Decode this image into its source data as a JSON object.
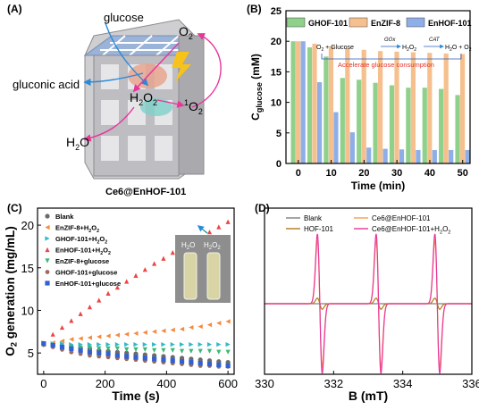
{
  "panels": {
    "a": {
      "label": "(A)",
      "caption": "Ce6@EnHOF-101",
      "labels": {
        "glucose": "glucose",
        "o2": "O",
        "o2_sub": "2",
        "gluconic": "gluconic acid",
        "h2o2_a": "H",
        "h2o2_b": "2",
        "h2o2_c": "O",
        "h2o2_d": "2",
        "singlet_sup": "1",
        "singlet_o": "O",
        "singlet_sub": "2",
        "h2o_a": "H",
        "h2o_b": "2",
        "h2o_c": "O"
      }
    },
    "b": {
      "label": "(B)"
    },
    "c": {
      "label": "(C)"
    },
    "d": {
      "label": "(D)"
    }
  },
  "chart_data": [
    {
      "id": "B",
      "type": "bar",
      "categories": [
        "0",
        "5",
        "10",
        "15",
        "20",
        "25",
        "30",
        "35",
        "40",
        "45",
        "50"
      ],
      "series": [
        {
          "name": "GHOF-101",
          "color": "#8fd08a",
          "values": [
            20.0,
            19.0,
            17.5,
            14.0,
            13.7,
            13.2,
            12.8,
            12.4,
            12.4,
            12.2,
            11.2
          ]
        },
        {
          "name": "EnZIF-8",
          "color": "#f6c08e",
          "values": [
            20.0,
            19.6,
            19.2,
            18.8,
            18.6,
            18.4,
            18.3,
            18.2,
            18.1,
            18.0,
            17.9
          ]
        },
        {
          "name": "EnHOF-101",
          "color": "#8eaee8",
          "values": [
            20.0,
            13.3,
            8.4,
            5.1,
            2.6,
            2.4,
            2.3,
            2.2,
            2.2,
            2.2,
            2.2
          ]
        }
      ],
      "xlabel": "Time (min)",
      "ylabel_main": "C",
      "ylabel_sub": "glucose",
      "ylabel_unit": " (mM)",
      "ylim": [
        0,
        25
      ],
      "yticks": [
        "0",
        "5",
        "10",
        "15",
        "20",
        "25"
      ],
      "xticks": [
        "0",
        "10",
        "20",
        "30",
        "40",
        "50"
      ],
      "legend": "top",
      "inset": {
        "reaction_parts": [
          "O",
          "2",
          " + Glucose",
          "GOx",
          "H",
          "2",
          "O",
          "2",
          "CAT",
          "H",
          "2",
          "O + O",
          "2"
        ],
        "note": "Accelerate glucose consumption",
        "note_color": "#e8332a"
      }
    },
    {
      "id": "C",
      "type": "scatter",
      "x": [
        0,
        30,
        60,
        90,
        120,
        150,
        180,
        210,
        240,
        270,
        300,
        330,
        360,
        390,
        420,
        450,
        480,
        510,
        540,
        570,
        600
      ],
      "series": [
        {
          "name": "Blank",
          "marker": "circle",
          "color": "#6b6b6b",
          "values": [
            6.0,
            5.9,
            5.8,
            5.7,
            5.6,
            5.5,
            5.3,
            5.2,
            5.1,
            5.0,
            4.9,
            4.8,
            4.7,
            4.6,
            4.5,
            4.4,
            4.3,
            4.2,
            4.1,
            4.0,
            3.9
          ]
        },
        {
          "name": "EnZIF-8+H2O2",
          "marker": "triangle-left",
          "color": "#f58a3c",
          "values": [
            6.0,
            6.2,
            6.4,
            6.6,
            6.7,
            6.8,
            6.9,
            7.0,
            7.1,
            7.2,
            7.3,
            7.4,
            7.5,
            7.6,
            7.7,
            7.8,
            8.0,
            8.1,
            8.3,
            8.5,
            8.7
          ]
        },
        {
          "name": "GHOF-101+H2O2",
          "marker": "triangle-right",
          "color": "#31b8c8",
          "values": [
            6.2,
            6.1,
            6.1,
            6.0,
            6.0,
            6.0,
            6.0,
            6.0,
            6.0,
            6.0,
            6.0,
            6.0,
            6.0,
            6.0,
            6.0,
            6.0,
            6.0,
            6.0,
            6.0,
            6.0,
            6.0
          ]
        },
        {
          "name": "EnHOF-101+H2O2",
          "marker": "triangle-up",
          "color": "#ec4545",
          "values": [
            6.2,
            7.2,
            8.0,
            8.8,
            9.6,
            10.4,
            11.2,
            12.0,
            12.7,
            13.4,
            14.1,
            14.8,
            15.5,
            16.1,
            16.8,
            17.4,
            18.0,
            18.6,
            19.2,
            19.8,
            20.4
          ]
        },
        {
          "name": "EnZIF-8+glucose",
          "marker": "triangle-down",
          "color": "#3cb878",
          "values": [
            5.9,
            5.8,
            5.7,
            5.7,
            5.6,
            5.6,
            5.5,
            5.5,
            5.5,
            5.4,
            5.4,
            5.4,
            5.3,
            5.3,
            5.3,
            5.2,
            5.2,
            5.2,
            5.2,
            5.1,
            5.1
          ]
        },
        {
          "name": "GHOF-101+glucose",
          "marker": "hexagon",
          "color": "#9a6a5a",
          "values": [
            6.0,
            5.7,
            5.4,
            5.1,
            4.9,
            4.7,
            4.6,
            4.5,
            4.4,
            4.3,
            4.2,
            4.1,
            4.0,
            3.9,
            3.8,
            3.7,
            3.6,
            3.5,
            3.5,
            3.4,
            3.4
          ]
        },
        {
          "name": "EnHOF-101+glucose",
          "marker": "square",
          "color": "#3360d0",
          "values": [
            6.1,
            5.9,
            5.7,
            5.5,
            5.3,
            5.1,
            5.0,
            4.9,
            4.7,
            4.6,
            4.5,
            4.4,
            4.3,
            4.2,
            4.1,
            4.0,
            3.9,
            3.8,
            3.7,
            3.6,
            3.5
          ]
        }
      ],
      "legend_labels": [
        [
          "Blank"
        ],
        [
          "EnZIF-8+H",
          "2",
          "O",
          "2"
        ],
        [
          "GHOF-101+H",
          "2",
          "O",
          "2"
        ],
        [
          "EnHOF-101+H",
          "2",
          "O",
          "2"
        ],
        [
          "EnZIF-8+glucose"
        ],
        [
          "GHOF-101+glucose"
        ],
        [
          "EnHOF-101+glucose"
        ]
      ],
      "xlabel": "Time (s)",
      "ylabel_parts": [
        "O",
        "2",
        " generation (mg/mL)"
      ],
      "xlim": [
        -20,
        620
      ],
      "ylim": [
        2.5,
        22
      ],
      "xticks": [
        "0",
        "200",
        "400",
        "600"
      ],
      "yticks": [
        "5",
        "10",
        "15",
        "20"
      ],
      "legend": "top-left",
      "inset": {
        "left_parts": [
          "H",
          "2",
          "O"
        ],
        "right_parts": [
          "H",
          "2",
          "O",
          "2"
        ]
      }
    },
    {
      "id": "D",
      "type": "line",
      "x_range": [
        330,
        336
      ],
      "peaks": [
        331.6,
        333.3,
        335.0
      ],
      "series": [
        {
          "name": "Blank",
          "color": "#808080",
          "amplitude": 0.0
        },
        {
          "name": "HOF-101",
          "color": "#b07a18",
          "amplitude": 0.08
        },
        {
          "name": "Ce6@EnHOF-101",
          "color": "#f6a04a",
          "amplitude": 0.9
        },
        {
          "name": "Ce6@EnHOF-101+H2O2",
          "color": "#e8359a",
          "amplitude": 1.0
        }
      ],
      "legend_labels": [
        [
          "Blank"
        ],
        [
          "HOF-101"
        ],
        [
          "Ce6@EnHOF-101"
        ],
        [
          "Ce6@EnHOF-101+H",
          "2",
          "O",
          "2"
        ]
      ],
      "xlabel": "B (mT)",
      "xticks": [
        "330",
        "332",
        "334",
        "336"
      ],
      "legend": "top"
    }
  ]
}
